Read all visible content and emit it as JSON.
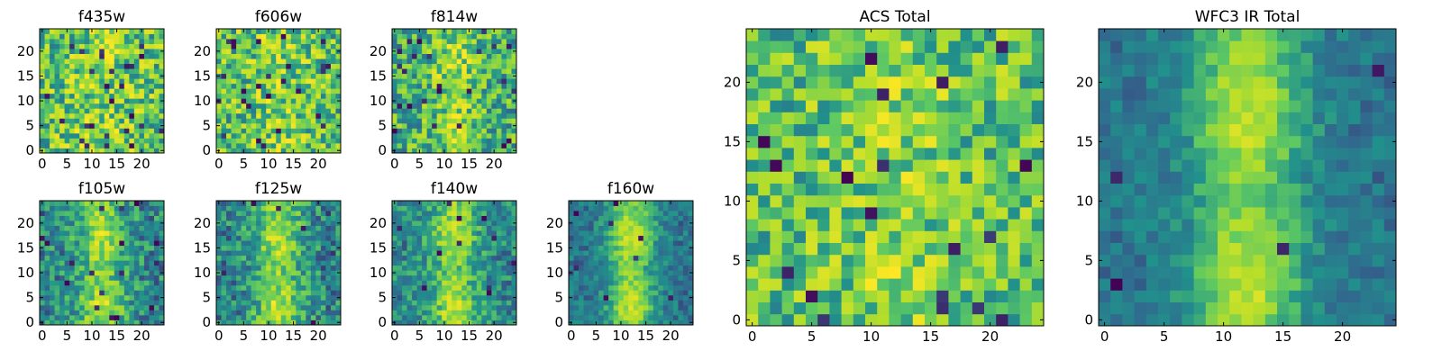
{
  "chart_data": [
    {
      "type": "heatmap",
      "title": "f435w",
      "xticks": [
        0,
        5,
        10,
        15,
        20
      ],
      "yticks": [
        0,
        5,
        10,
        15,
        20
      ],
      "xlim": [
        0,
        24
      ],
      "ylim": [
        0,
        24
      ],
      "grid_size": 25,
      "colormap": [
        "#440154",
        "#31688e",
        "#21918c",
        "#5ec962",
        "#b5de2b",
        "#fde725"
      ],
      "seed": 435,
      "field": {
        "amp": 0.15,
        "base": 0.62,
        "noise": 0.34,
        "outliers": 0.04
      }
    },
    {
      "type": "heatmap",
      "title": "f606w",
      "xticks": [
        0,
        5,
        10,
        15,
        20
      ],
      "yticks": [
        0,
        5,
        10,
        15,
        20
      ],
      "xlim": [
        0,
        24
      ],
      "ylim": [
        0,
        24
      ],
      "grid_size": 25,
      "colormap": [
        "#440154",
        "#31688e",
        "#21918c",
        "#5ec962",
        "#b5de2b",
        "#fde725"
      ],
      "seed": 606,
      "field": {
        "amp": 0.15,
        "base": 0.6,
        "noise": 0.34,
        "outliers": 0.04
      }
    },
    {
      "type": "heatmap",
      "title": "f814w",
      "xticks": [
        0,
        5,
        10,
        15,
        20
      ],
      "yticks": [
        0,
        5,
        10,
        15,
        20
      ],
      "xlim": [
        0,
        24
      ],
      "ylim": [
        0,
        24
      ],
      "grid_size": 25,
      "colormap": [
        "#440154",
        "#31688e",
        "#21918c",
        "#5ec962",
        "#b5de2b",
        "#fde725"
      ],
      "seed": 814,
      "field": {
        "amp": 0.3,
        "base": 0.5,
        "noise": 0.3,
        "outliers": 0.03
      }
    },
    {
      "type": "heatmap",
      "title": "f105w",
      "xticks": [
        0,
        5,
        10,
        15,
        20
      ],
      "yticks": [
        0,
        5,
        10,
        15,
        20
      ],
      "xlim": [
        0,
        24
      ],
      "ylim": [
        0,
        24
      ],
      "grid_size": 25,
      "colormap": [
        "#440154",
        "#31688e",
        "#21918c",
        "#5ec962",
        "#b5de2b",
        "#fde725"
      ],
      "seed": 105,
      "field": {
        "amp": 0.45,
        "base": 0.35,
        "noise": 0.22,
        "outliers": 0.02
      }
    },
    {
      "type": "heatmap",
      "title": "f125w",
      "xticks": [
        0,
        5,
        10,
        15,
        20
      ],
      "yticks": [
        0,
        5,
        10,
        15,
        20
      ],
      "xlim": [
        0,
        24
      ],
      "ylim": [
        0,
        24
      ],
      "grid_size": 25,
      "colormap": [
        "#440154",
        "#31688e",
        "#21918c",
        "#5ec962",
        "#b5de2b",
        "#fde725"
      ],
      "seed": 125,
      "field": {
        "amp": 0.45,
        "base": 0.35,
        "noise": 0.22,
        "outliers": 0.02
      }
    },
    {
      "type": "heatmap",
      "title": "f140w",
      "xticks": [
        0,
        5,
        10,
        15,
        20
      ],
      "yticks": [
        0,
        5,
        10,
        15,
        20
      ],
      "xlim": [
        0,
        24
      ],
      "ylim": [
        0,
        24
      ],
      "grid_size": 25,
      "colormap": [
        "#440154",
        "#31688e",
        "#21918c",
        "#5ec962",
        "#b5de2b",
        "#fde725"
      ],
      "seed": 140,
      "field": {
        "amp": 0.45,
        "base": 0.35,
        "noise": 0.2,
        "outliers": 0.02
      }
    },
    {
      "type": "heatmap",
      "title": "f160w",
      "xticks": [
        0,
        5,
        10,
        15,
        20
      ],
      "yticks": [
        0,
        5,
        10,
        15,
        20
      ],
      "xlim": [
        0,
        24
      ],
      "ylim": [
        0,
        24
      ],
      "grid_size": 25,
      "colormap": [
        "#440154",
        "#31688e",
        "#21918c",
        "#5ec962",
        "#b5de2b",
        "#fde725"
      ],
      "seed": 160,
      "field": {
        "amp": 0.55,
        "base": 0.28,
        "noise": 0.14,
        "outliers": 0.01
      }
    },
    {
      "type": "heatmap",
      "title": "ACS Total",
      "xticks": [
        0,
        5,
        10,
        15,
        20
      ],
      "yticks": [
        0,
        5,
        10,
        15,
        20
      ],
      "xlim": [
        0,
        24
      ],
      "ylim": [
        0,
        24
      ],
      "grid_size": 25,
      "colormap": [
        "#440154",
        "#31688e",
        "#21918c",
        "#5ec962",
        "#b5de2b",
        "#fde725"
      ],
      "seed": 999,
      "field": {
        "amp": 0.15,
        "base": 0.6,
        "noise": 0.28,
        "outliers": 0.03
      }
    },
    {
      "type": "heatmap",
      "title": "WFC3 IR Total",
      "xticks": [
        0,
        5,
        10,
        15,
        20
      ],
      "yticks": [
        0,
        5,
        10,
        15,
        20
      ],
      "xlim": [
        0,
        24
      ],
      "ylim": [
        0,
        24
      ],
      "grid_size": 25,
      "colormap": [
        "#440154",
        "#31688e",
        "#21918c",
        "#5ec962",
        "#b5de2b",
        "#fde725"
      ],
      "seed": 777,
      "field": {
        "amp": 0.55,
        "base": 0.28,
        "noise": 0.12,
        "outliers": 0.01
      }
    }
  ]
}
